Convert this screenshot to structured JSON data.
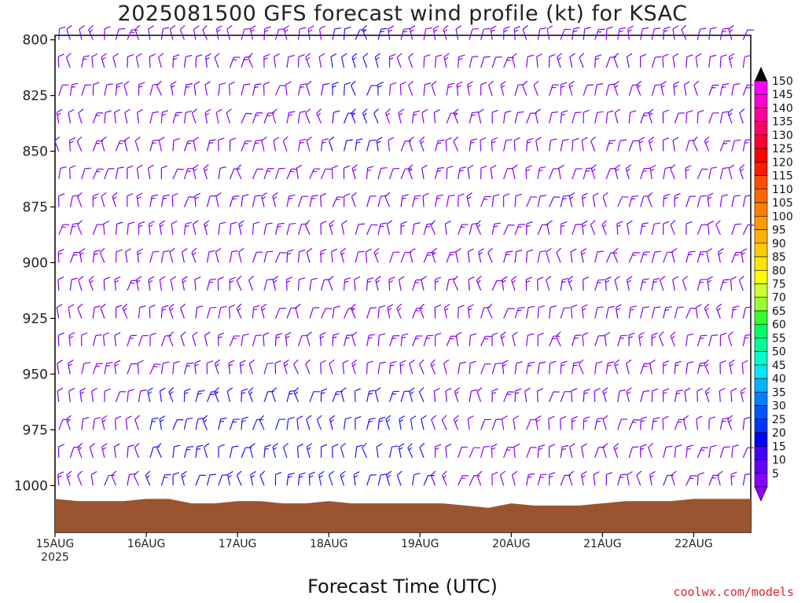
{
  "title": "2025081500 GFS forecast wind profile (kt) for KSAC",
  "xlabel": "Forecast Time (UTC)",
  "credit": "coolwx.com/models",
  "chart_data": {
    "type": "wind-barb",
    "title": "2025081500 GFS forecast wind profile (kt) for KSAC",
    "xlabel": "Forecast Time (UTC)",
    "ylabel": "",
    "y_axis": {
      "ticks": [
        800,
        825,
        850,
        875,
        900,
        925,
        950,
        975,
        1000
      ],
      "reversed": true,
      "ylim": [
        798,
        1021
      ]
    },
    "x_axis": {
      "ticks": [
        {
          "label": "15AUG",
          "sub": "2025",
          "hour": 0
        },
        {
          "label": "16AUG",
          "sub": "",
          "hour": 24
        },
        {
          "label": "17AUG",
          "sub": "",
          "hour": 48
        },
        {
          "label": "18AUG",
          "sub": "",
          "hour": 72
        },
        {
          "label": "19AUG",
          "sub": "",
          "hour": 96
        },
        {
          "label": "20AUG",
          "sub": "",
          "hour": 120
        },
        {
          "label": "21AUG",
          "sub": "",
          "hour": 144
        },
        {
          "label": "22AUG",
          "sub": "",
          "hour": 168
        }
      ],
      "xlim_hours": [
        0,
        183
      ]
    },
    "colorbar": {
      "labels": [
        "150",
        "145",
        "140",
        "135",
        "130",
        "125",
        "120",
        "115",
        "110",
        "105",
        "100",
        "95",
        "90",
        "85",
        "80",
        "75",
        "70",
        "65",
        "60",
        "55",
        "50",
        "45",
        "40",
        "35",
        "30",
        "25",
        "20",
        "15",
        "10",
        "5"
      ],
      "colors": [
        "#ff00ff",
        "#ff00cc",
        "#ff0099",
        "#ff0066",
        "#ff0033",
        "#ff0000",
        "#ff1a00",
        "#ff4d00",
        "#ff6600",
        "#ff8000",
        "#ff9900",
        "#ffb300",
        "#ffcc00",
        "#ffe600",
        "#ffff00",
        "#ccff33",
        "#99ff33",
        "#33ff33",
        "#00ff66",
        "#00ff99",
        "#00ffcc",
        "#00e6ff",
        "#00b3ff",
        "#0080ff",
        "#0055ff",
        "#0033ff",
        "#0000ff",
        "#4400ff",
        "#6600ff",
        "#8800ff"
      ]
    },
    "terrain_color": "#9b5430",
    "wind_profile_note": "Wind barbs at every 6-hourly step from 15AUG 00Z to 22AUG 12Z on 25-hPa levels; mostly light (5-15 kt, purple) southwesterly-westerly flow, locally 15-25 kt (blue) near 975-1000 hPa on 16-19 AUG."
  }
}
